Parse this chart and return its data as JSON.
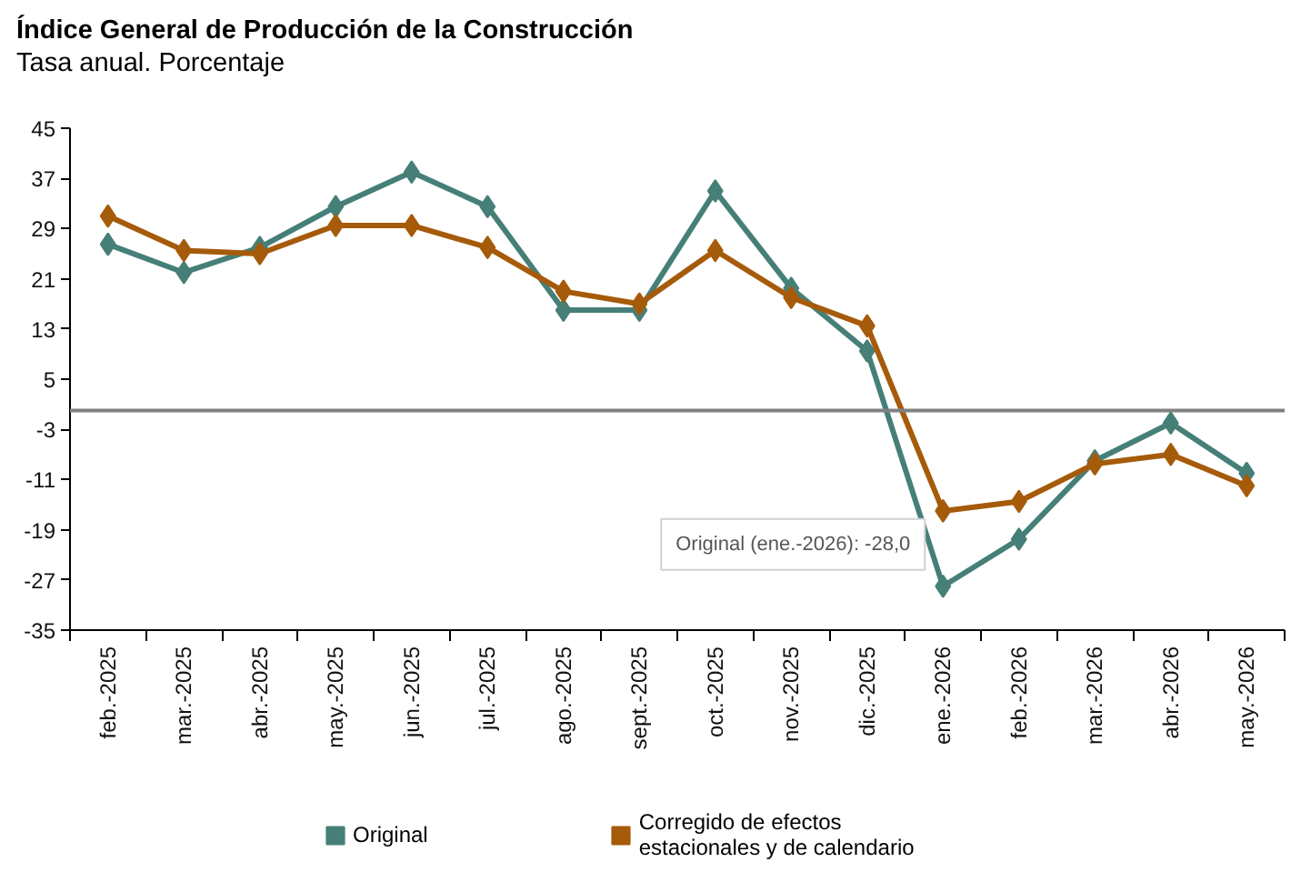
{
  "chart_data": {
    "type": "line",
    "title": "Índice General de Producción de la Construcción",
    "subtitle": "Tasa anual. Porcentaje",
    "categories": [
      "feb.-2025",
      "mar.-2025",
      "abr.-2025",
      "may.-2025",
      "jun.-2025",
      "jul.-2025",
      "ago.-2025",
      "sept.-2025",
      "oct.-2025",
      "nov.-2025",
      "dic.-2025",
      "ene.-2026",
      "feb.-2026",
      "mar.-2026",
      "abr.-2026",
      "may.-2026"
    ],
    "series": [
      {
        "name": "Original",
        "color": "#467f78",
        "values": [
          26.5,
          22,
          26,
          32.5,
          38,
          32.5,
          16,
          16,
          35,
          19.5,
          9.5,
          -28,
          -20.5,
          -8,
          -2,
          -10
        ]
      },
      {
        "name": "Corregido de efectos estacionales y de calendario",
        "color": "#a65b0b",
        "values": [
          31,
          25.5,
          25,
          29.5,
          29.5,
          26,
          19,
          17,
          25.5,
          18,
          13.5,
          -16,
          -14.5,
          -8.5,
          -7,
          -12
        ]
      }
    ],
    "ylim": [
      -35,
      45
    ],
    "yticks": [
      45,
      37,
      29,
      21,
      13,
      5,
      -3,
      -11,
      -19,
      -27,
      -35
    ],
    "grid": false,
    "legend": "bottom",
    "marker": "diamond",
    "line_style": "solid",
    "ref_lines": [
      {
        "axis": "y",
        "value": 0,
        "color": "#808080"
      }
    ],
    "annotations": [
      {
        "text": "Original (ene.-2026): -28,0",
        "x": "ene.-2026",
        "y": -28
      }
    ]
  }
}
